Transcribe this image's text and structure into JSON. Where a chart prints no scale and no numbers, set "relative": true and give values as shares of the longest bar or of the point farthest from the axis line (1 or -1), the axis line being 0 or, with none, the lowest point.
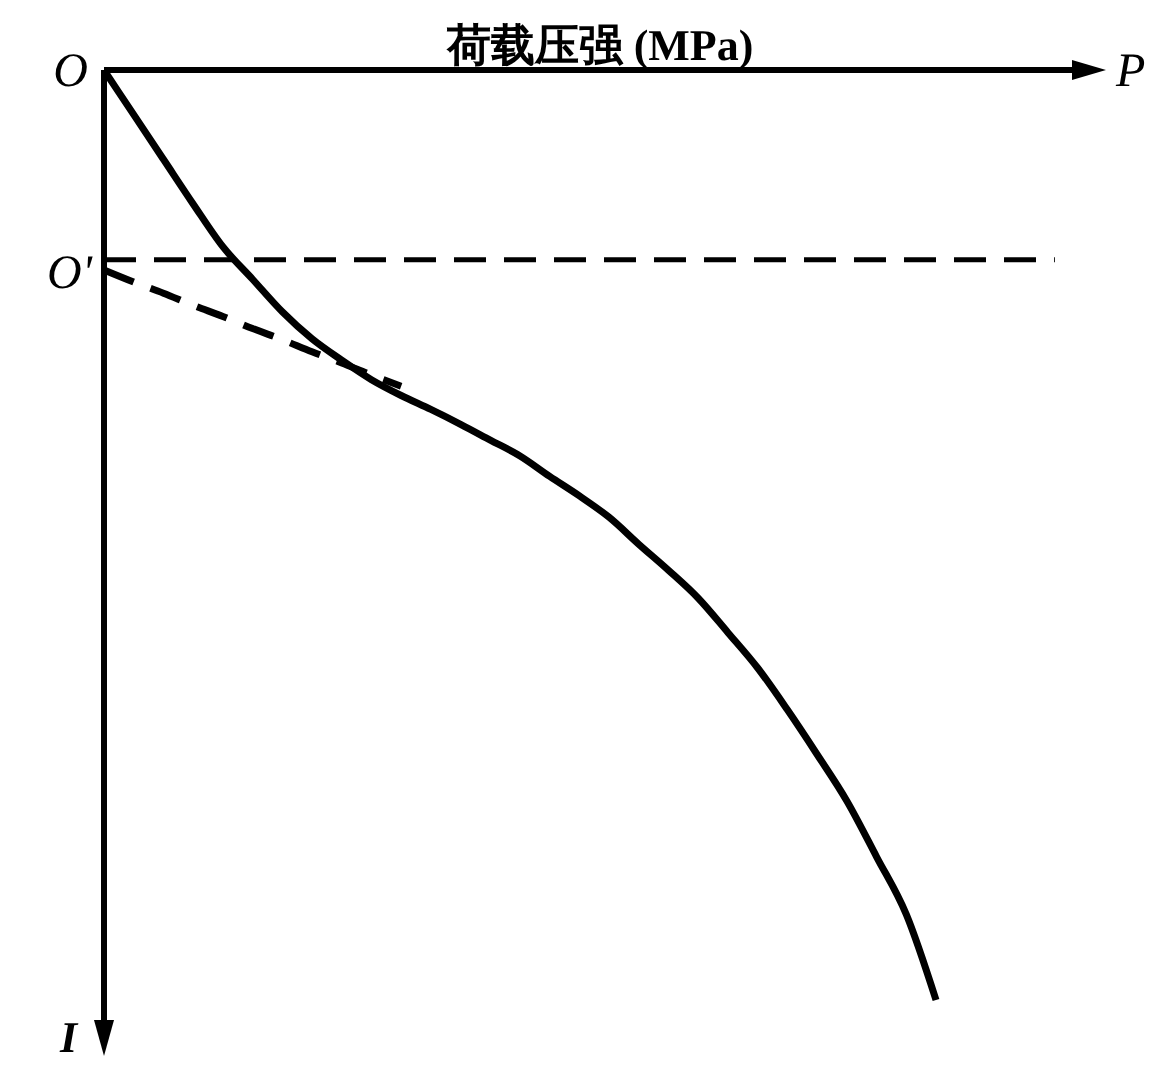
{
  "chart_data": {
    "type": "line",
    "title": "荷载压强 (MPa)",
    "xlabel": "P",
    "ylabel": "I",
    "relative": true,
    "categories": [
      null,
      null,
      null,
      null,
      null,
      null,
      null,
      null,
      null,
      null,
      null,
      null,
      null,
      null,
      null,
      null,
      null,
      null,
      null,
      null,
      null,
      null,
      null,
      null,
      null,
      null,
      null,
      null,
      null,
      null,
      null,
      null,
      null
    ],
    "series": [
      {
        "color": "#000000",
        "line_style": "solid",
        "values": [
          0,
          -0.048,
          -0.096,
          -0.144,
          -0.19,
          -0.225,
          -0.26,
          -0.289,
          -0.312,
          -0.333,
          -0.35,
          -0.365,
          -0.381,
          -0.398,
          -0.415,
          -0.437,
          -0.458,
          -0.481,
          -0.51,
          -0.538,
          -0.568,
          -0.605,
          -0.643,
          -0.688,
          -0.736,
          -0.786,
          -0.846,
          -0.908,
          -1,
          null,
          null,
          null,
          null
        ]
      },
      {
        "color": "#000000",
        "line_style": "dashed",
        "values": [
          -0.215,
          -0.228,
          -0.24,
          -0.253,
          -0.265,
          -0.278,
          -0.29,
          -0.303,
          -0.315,
          -0.328,
          -0.34,
          null,
          null,
          null,
          null,
          null,
          null,
          null,
          null,
          null,
          null,
          null,
          null,
          null,
          null,
          null,
          null,
          null,
          null,
          null,
          null,
          null,
          null
        ]
      },
      {
        "name": "O'",
        "color": "#000000",
        "line_style": "dashed",
        "values": [
          -0.204,
          -0.204,
          -0.204,
          -0.204,
          -0.204,
          -0.204,
          -0.204,
          -0.204,
          -0.204,
          -0.204,
          -0.204,
          -0.204,
          -0.204,
          -0.204,
          -0.204,
          -0.204,
          -0.204,
          -0.204,
          -0.204,
          -0.204,
          -0.204,
          -0.204,
          -0.204,
          -0.204,
          -0.204,
          -0.204,
          -0.204,
          -0.204,
          -0.204,
          -0.204,
          -0.204,
          -0.204,
          -0.204
        ]
      }
    ],
    "annotations": [
      "O"
    ]
  }
}
